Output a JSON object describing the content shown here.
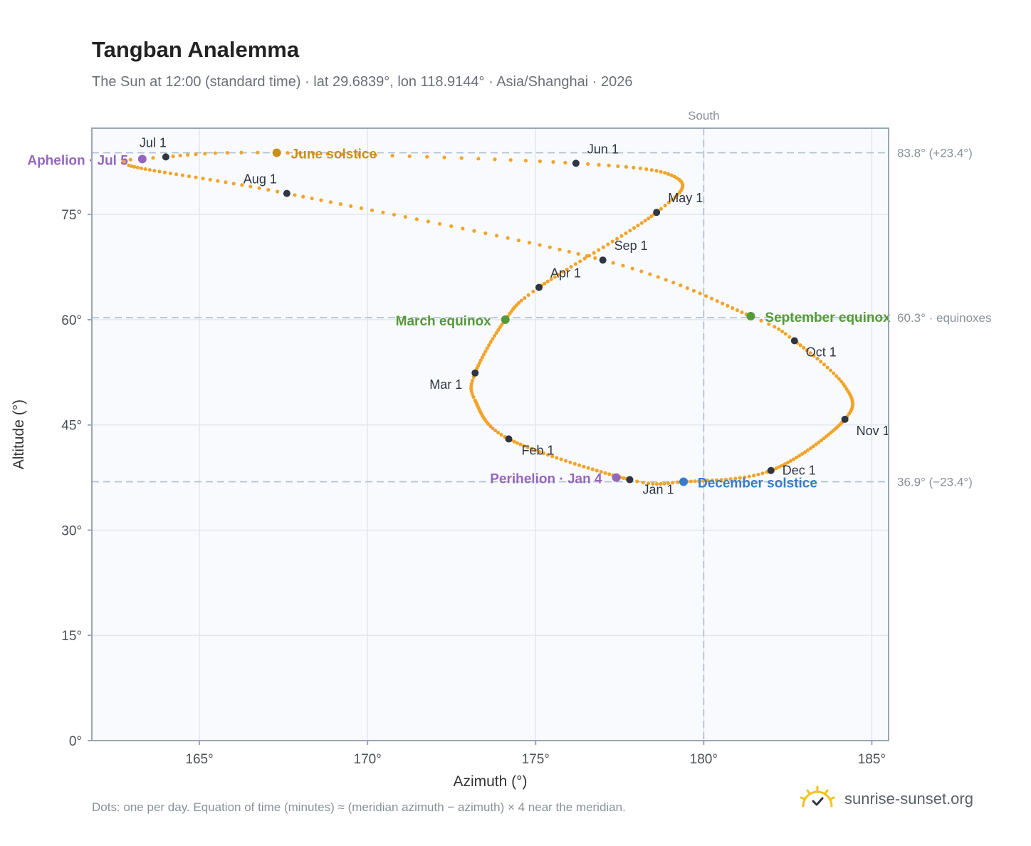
{
  "header": {
    "title": "Tangban Analemma",
    "subtitle": "The Sun at 12:00 (standard time) · lat 29.6839°, lon 118.9144° · Asia/Shanghai · 2026"
  },
  "footer": {
    "footnote": "Dots: one per day. Equation of time (minutes) ≈ (meridian azimuth − azimuth) × 4 near the meridian.",
    "brand": "sunrise-sunset.org"
  },
  "chart_data": {
    "type": "scatter",
    "xlabel": "Azimuth (°)",
    "ylabel": "Altitude (°)",
    "xlim": [
      161.8,
      185.5
    ],
    "ylim": [
      0,
      87.3
    ],
    "xticks": [
      165,
      170,
      175,
      180,
      185
    ],
    "xtick_labels": [
      "165°",
      "170°",
      "175°",
      "180°",
      "185°"
    ],
    "yticks": [
      0,
      15,
      30,
      45,
      60,
      75
    ],
    "ytick_labels": [
      "0°",
      "15°",
      "30°",
      "45°",
      "60°",
      "75°"
    ],
    "grid": true,
    "colors": {
      "analemma": "#f2a42a",
      "month_marker": "#2f3542",
      "june_solstice": "#c8901a",
      "december_solstice": "#3a7bc8",
      "equinox": "#559a38",
      "apsis": "#9467bd",
      "reference_line": "#b4c2d0",
      "plot_background": "#f8fafd",
      "plot_border": "#9aa6b5"
    },
    "south_line": {
      "x": 180,
      "label": "South"
    },
    "reference_lines": [
      {
        "y": 83.8,
        "label": "83.8° (+23.4°)"
      },
      {
        "y": 60.3,
        "label": "60.3° · equinoxes"
      },
      {
        "y": 36.9,
        "label": "36.9° (−23.4°)"
      }
    ],
    "month_markers": [
      {
        "label": "Jan 1",
        "x": 177.8,
        "y": 37.2
      },
      {
        "label": "Feb 1",
        "x": 174.2,
        "y": 43.0
      },
      {
        "label": "Mar 1",
        "x": 173.2,
        "y": 52.4
      },
      {
        "label": "Apr 1",
        "x": 175.1,
        "y": 64.6
      },
      {
        "label": "May 1",
        "x": 178.6,
        "y": 75.3
      },
      {
        "label": "Jun 1",
        "x": 176.2,
        "y": 82.3
      },
      {
        "label": "Jul 1",
        "x": 164.0,
        "y": 83.2
      },
      {
        "label": "Aug 1",
        "x": 167.6,
        "y": 78.0
      },
      {
        "label": "Sep 1",
        "x": 177.0,
        "y": 68.5
      },
      {
        "label": "Oct 1",
        "x": 182.7,
        "y": 57.0
      },
      {
        "label": "Nov 1",
        "x": 184.2,
        "y": 45.8
      },
      {
        "label": "Dec 1",
        "x": 182.0,
        "y": 38.5
      }
    ],
    "events": [
      {
        "label": "June solstice",
        "x": 167.3,
        "y": 83.8,
        "kind": "june_solstice"
      },
      {
        "label": "December solstice",
        "x": 179.4,
        "y": 36.9,
        "kind": "december_solstice"
      },
      {
        "label": "March equinox",
        "x": 174.1,
        "y": 60.0,
        "kind": "equinox"
      },
      {
        "label": "September equinox",
        "x": 181.4,
        "y": 60.5,
        "kind": "equinox"
      },
      {
        "label": "Aphelion · Jul 5",
        "x": 163.3,
        "y": 82.9,
        "kind": "apsis"
      },
      {
        "label": "Perihelion · Jan 4",
        "x": 177.4,
        "y": 37.5,
        "kind": "apsis"
      }
    ]
  }
}
